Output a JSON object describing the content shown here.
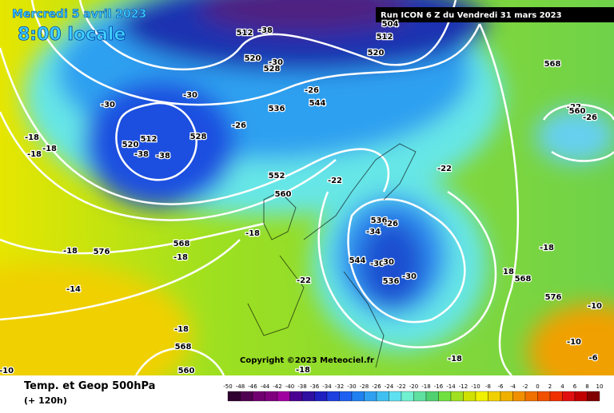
{
  "header": {
    "date": "Mercredi 5 avril 2023",
    "time": "8:00 locale",
    "run": "Run ICON 6 Z du Vendredi 31 mars 2023"
  },
  "copyright": "Copyright ©2023 Meteociel.fr",
  "footer": {
    "title": "Temp. et Geop 500hPa",
    "subtitle": "(+ 120h)"
  },
  "scale": [
    -50,
    -48,
    -46,
    -44,
    -42,
    -40,
    -38,
    -36,
    -34,
    -32,
    -30,
    -28,
    -26,
    -24,
    -22,
    -20,
    -18,
    -16,
    -14,
    -12,
    -10,
    -8,
    -6,
    -4,
    -2,
    0,
    2,
    4,
    6,
    8,
    10
  ],
  "map_labels": [
    "512",
    "-38",
    "504",
    "512",
    "520",
    "520",
    "-30",
    "528",
    "-30",
    "-30",
    "-26",
    "544",
    "536",
    "-26",
    "512",
    "520",
    "-38",
    "-38",
    "528",
    "-18",
    "-18",
    "-18",
    "552",
    "560",
    "-22",
    "-22",
    "568",
    "-22",
    "560",
    "-26",
    "-18",
    "536",
    "-26",
    "-34",
    "-18",
    "576",
    "568",
    "-18",
    "544",
    "-30",
    "30",
    "-22",
    "536",
    "-30",
    "18",
    "568",
    "-18",
    "-14",
    "576",
    "-10",
    "-18",
    "568",
    "-10",
    "-6",
    "-18",
    "560",
    "-18",
    "-10"
  ]
}
